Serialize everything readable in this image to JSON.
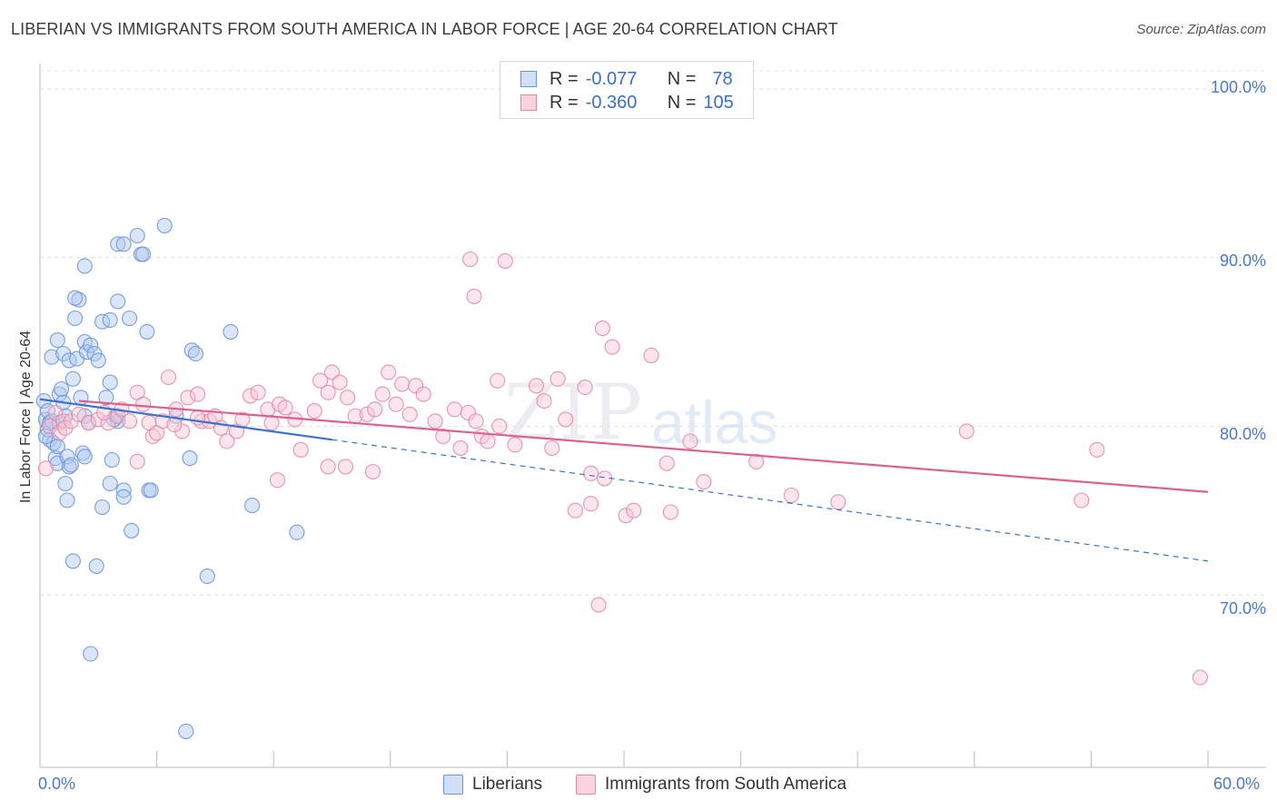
{
  "title": "LIBERIAN VS IMMIGRANTS FROM SOUTH AMERICA IN LABOR FORCE | AGE 20-64 CORRELATION CHART",
  "source": "Source: ZipAtlas.com",
  "watermark": {
    "zip": "ZIP",
    "atlas": "atlas"
  },
  "legend_top": {
    "rows": [
      {
        "r_label": "R =",
        "r_value": "-0.077",
        "n_label": "N =",
        "n_value": "78",
        "color": "#aec8ef"
      },
      {
        "r_label": "R =",
        "r_value": "-0.360",
        "n_label": "N =",
        "n_value": "105",
        "color": "#f4b8c8"
      }
    ]
  },
  "legend_bottom": [
    {
      "label": "Liberians",
      "color": "#aec8ef",
      "border": "#6b95d8"
    },
    {
      "label": "Immigrants from South America",
      "color": "#f8c6d4",
      "border": "#e48aa6"
    }
  ],
  "chart_data": {
    "type": "scatter",
    "title": "LIBERIAN VS IMMIGRANTS FROM SOUTH AMERICA IN LABOR FORCE | AGE 20-64 CORRELATION CHART",
    "xlabel": "",
    "ylabel": "In Labor Force | Age 20-64",
    "xlim": [
      0,
      60
    ],
    "ylim": [
      60.5,
      101.5
    ],
    "x_tick_labels": [
      "0.0%",
      "60.0%"
    ],
    "y_ticks": [
      70,
      80,
      90,
      100
    ],
    "y_tick_labels": [
      "70.0%",
      "80.0%",
      "90.0%",
      "100.0%"
    ],
    "grid": true,
    "series": [
      {
        "name": "Liberians",
        "color": "#6b95d8",
        "fill": "#aec8ef",
        "trend": {
          "x": [
            0,
            15
          ],
          "y": [
            81.6,
            79.2
          ],
          "dashed_to": [
            60,
            72.0
          ]
        },
        "points": [
          [
            0.2,
            81.5
          ],
          [
            0.3,
            80.4
          ],
          [
            0.4,
            79.8
          ],
          [
            0.4,
            80.9
          ],
          [
            0.5,
            80.2
          ],
          [
            0.6,
            80.3
          ],
          [
            0.5,
            79.2
          ],
          [
            0.7,
            79.0
          ],
          [
            0.8,
            78.1
          ],
          [
            0.9,
            77.8
          ],
          [
            1.0,
            81.9
          ],
          [
            1.0,
            80.2
          ],
          [
            1.1,
            82.2
          ],
          [
            1.2,
            81.4
          ],
          [
            1.3,
            80.6
          ],
          [
            1.4,
            78.2
          ],
          [
            1.5,
            77.6
          ],
          [
            1.6,
            77.7
          ],
          [
            1.3,
            76.6
          ],
          [
            1.4,
            75.6
          ],
          [
            0.6,
            84.1
          ],
          [
            0.9,
            85.1
          ],
          [
            1.2,
            84.3
          ],
          [
            1.5,
            83.9
          ],
          [
            1.7,
            82.8
          ],
          [
            1.8,
            86.4
          ],
          [
            2.0,
            87.5
          ],
          [
            1.9,
            84.0
          ],
          [
            2.3,
            85.0
          ],
          [
            2.4,
            84.4
          ],
          [
            2.6,
            84.8
          ],
          [
            2.8,
            84.3
          ],
          [
            3.0,
            83.9
          ],
          [
            2.1,
            81.7
          ],
          [
            2.3,
            80.6
          ],
          [
            2.5,
            80.2
          ],
          [
            2.2,
            78.4
          ],
          [
            2.3,
            78.2
          ],
          [
            3.6,
            82.6
          ],
          [
            3.9,
            80.6
          ],
          [
            4.0,
            80.3
          ],
          [
            3.4,
            81.7
          ],
          [
            3.8,
            80.4
          ],
          [
            3.2,
            86.2
          ],
          [
            3.6,
            86.3
          ],
          [
            4.0,
            87.4
          ],
          [
            4.6,
            86.4
          ],
          [
            5.5,
            85.6
          ],
          [
            2.3,
            89.5
          ],
          [
            1.8,
            87.6
          ],
          [
            4.0,
            90.8
          ],
          [
            4.3,
            90.8
          ],
          [
            5.0,
            91.3
          ],
          [
            5.2,
            90.2
          ],
          [
            5.3,
            90.2
          ],
          [
            6.4,
            91.9
          ],
          [
            7.8,
            84.5
          ],
          [
            8.0,
            84.3
          ],
          [
            9.8,
            85.6
          ],
          [
            7.0,
            80.6
          ],
          [
            3.6,
            76.6
          ],
          [
            4.3,
            76.2
          ],
          [
            4.3,
            75.8
          ],
          [
            5.6,
            76.2
          ],
          [
            5.7,
            76.2
          ],
          [
            3.2,
            75.2
          ],
          [
            7.7,
            78.1
          ],
          [
            10.9,
            75.3
          ],
          [
            13.2,
            73.7
          ],
          [
            4.7,
            73.8
          ],
          [
            1.7,
            72.0
          ],
          [
            2.9,
            71.7
          ],
          [
            8.6,
            71.1
          ],
          [
            2.6,
            66.5
          ],
          [
            7.5,
            61.9
          ],
          [
            0.3,
            79.4
          ],
          [
            0.9,
            78.8
          ],
          [
            3.7,
            78.0
          ]
        ]
      },
      {
        "name": "Immigrants from South America",
        "color": "#e48aa6",
        "fill": "#f8c6d4",
        "trend": {
          "x": [
            2,
            60
          ],
          "y": [
            81.5,
            76.1
          ]
        },
        "points": [
          [
            0.3,
            77.5
          ],
          [
            0.5,
            80.0
          ],
          [
            0.8,
            80.8
          ],
          [
            1.0,
            79.6
          ],
          [
            1.2,
            80.3
          ],
          [
            1.3,
            79.9
          ],
          [
            1.6,
            80.3
          ],
          [
            2.0,
            80.7
          ],
          [
            2.5,
            80.2
          ],
          [
            3.0,
            80.4
          ],
          [
            3.5,
            80.2
          ],
          [
            4.0,
            80.6
          ],
          [
            4.2,
            81.0
          ],
          [
            4.6,
            80.3
          ],
          [
            5.0,
            82.0
          ],
          [
            5.3,
            81.3
          ],
          [
            5.6,
            80.2
          ],
          [
            5.8,
            79.4
          ],
          [
            6.0,
            79.6
          ],
          [
            6.3,
            80.3
          ],
          [
            6.6,
            82.9
          ],
          [
            7.0,
            81.0
          ],
          [
            7.3,
            79.7
          ],
          [
            7.6,
            81.7
          ],
          [
            8.1,
            81.9
          ],
          [
            8.3,
            80.3
          ],
          [
            8.7,
            80.3
          ],
          [
            9.0,
            80.6
          ],
          [
            9.3,
            79.9
          ],
          [
            9.6,
            79.1
          ],
          [
            10.1,
            79.7
          ],
          [
            10.4,
            80.4
          ],
          [
            10.8,
            81.8
          ],
          [
            11.2,
            82.0
          ],
          [
            11.7,
            81.0
          ],
          [
            11.9,
            80.2
          ],
          [
            12.3,
            81.3
          ],
          [
            12.6,
            81.1
          ],
          [
            13.1,
            80.4
          ],
          [
            13.4,
            78.6
          ],
          [
            14.1,
            80.9
          ],
          [
            14.4,
            82.7
          ],
          [
            14.8,
            82.0
          ],
          [
            15.0,
            83.2
          ],
          [
            15.4,
            82.6
          ],
          [
            15.8,
            81.7
          ],
          [
            16.2,
            80.6
          ],
          [
            16.8,
            80.7
          ],
          [
            17.2,
            81.0
          ],
          [
            17.6,
            81.9
          ],
          [
            17.9,
            83.2
          ],
          [
            18.3,
            81.3
          ],
          [
            18.6,
            82.5
          ],
          [
            19.0,
            80.7
          ],
          [
            19.3,
            82.4
          ],
          [
            19.7,
            81.9
          ],
          [
            20.3,
            80.3
          ],
          [
            20.7,
            79.4
          ],
          [
            21.3,
            81.0
          ],
          [
            21.6,
            78.7
          ],
          [
            22.0,
            80.8
          ],
          [
            22.4,
            80.3
          ],
          [
            22.7,
            79.4
          ],
          [
            23.0,
            79.1
          ],
          [
            23.5,
            82.7
          ],
          [
            24.4,
            78.9
          ],
          [
            25.5,
            82.4
          ],
          [
            25.9,
            81.5
          ],
          [
            26.3,
            78.7
          ],
          [
            26.6,
            82.8
          ],
          [
            27.0,
            80.4
          ],
          [
            28.0,
            82.3
          ],
          [
            28.3,
            77.2
          ],
          [
            28.9,
            85.8
          ],
          [
            29.4,
            84.7
          ],
          [
            27.5,
            75.0
          ],
          [
            28.3,
            75.4
          ],
          [
            29.0,
            76.9
          ],
          [
            30.1,
            74.7
          ],
          [
            30.5,
            75.0
          ],
          [
            31.4,
            84.2
          ],
          [
            32.4,
            74.9
          ],
          [
            32.2,
            77.8
          ],
          [
            33.4,
            79.1
          ],
          [
            34.1,
            76.7
          ],
          [
            36.8,
            77.9
          ],
          [
            38.6,
            75.9
          ],
          [
            41.0,
            75.5
          ],
          [
            47.6,
            79.7
          ],
          [
            53.5,
            75.6
          ],
          [
            54.3,
            78.6
          ],
          [
            59.6,
            65.1
          ],
          [
            28.7,
            69.4
          ],
          [
            22.1,
            89.9
          ],
          [
            23.9,
            89.8
          ],
          [
            22.3,
            87.7
          ],
          [
            8.1,
            80.5
          ],
          [
            12.2,
            76.8
          ],
          [
            14.8,
            77.6
          ],
          [
            15.7,
            77.6
          ],
          [
            17.1,
            77.3
          ],
          [
            23.6,
            80.0
          ],
          [
            5.0,
            77.9
          ],
          [
            3.3,
            80.8
          ],
          [
            6.9,
            80.1
          ]
        ]
      }
    ]
  }
}
